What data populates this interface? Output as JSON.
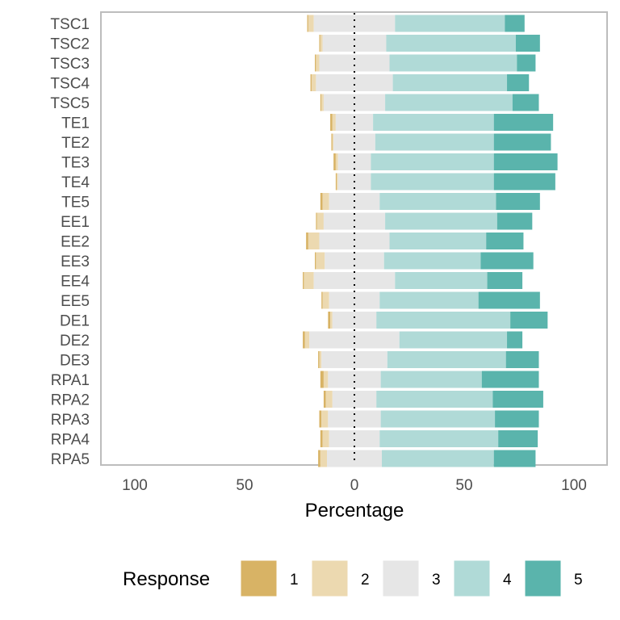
{
  "chart_data": {
    "type": "bar",
    "orientation": "horizontal",
    "stacked": "diverging",
    "categories": [
      "TSC1",
      "TSC2",
      "TSC3",
      "TSC4",
      "TSC5",
      "TE1",
      "TE2",
      "TE3",
      "TE4",
      "TE5",
      "EE1",
      "EE2",
      "EE3",
      "EE4",
      "EE5",
      "DE1",
      "DE2",
      "DE3",
      "RPA1",
      "RPA2",
      "RPA3",
      "RPA4",
      "RPA5"
    ],
    "series": [
      {
        "name": "1",
        "values": [
          0.5,
          0.5,
          0.5,
          0.5,
          0.5,
          1,
          0.5,
          1,
          0.5,
          1,
          0.5,
          1,
          0.5,
          0.5,
          0.5,
          1,
          1,
          0.5,
          1.5,
          1,
          1,
          1,
          1
        ]
      },
      {
        "name": "2",
        "values": [
          2.5,
          1,
          1.5,
          2,
          1,
          1.5,
          0.5,
          1,
          0.5,
          3,
          3,
          5,
          4,
          4.5,
          3,
          1,
          2,
          1,
          2,
          3,
          3,
          3,
          3
        ]
      },
      {
        "name": "3",
        "values": [
          37,
          29,
          32,
          35,
          28,
          17,
          19,
          15,
          15,
          23,
          28,
          32,
          27,
          37,
          23,
          20,
          41,
          30,
          24,
          20,
          24,
          23,
          25
        ]
      },
      {
        "name": "4",
        "values": [
          50,
          59,
          58,
          52,
          58,
          55,
          54,
          56,
          56,
          53,
          51,
          44,
          44,
          42,
          45,
          61,
          49,
          54,
          46,
          53,
          52,
          54,
          51
        ]
      },
      {
        "name": "5",
        "values": [
          9,
          11,
          8.5,
          10,
          12,
          27,
          26,
          29,
          28,
          20,
          16,
          17,
          24,
          16,
          28,
          17,
          7,
          15,
          26,
          23,
          20,
          18,
          19
        ]
      }
    ],
    "xlabel": "Percentage",
    "ylabel": "",
    "xlim": [
      -115,
      115
    ],
    "xticks": [
      -100,
      -50,
      0,
      50,
      100
    ],
    "xtick_labels": [
      "100",
      "50",
      "0",
      "50",
      "100"
    ],
    "colors": [
      "#d8b365",
      "#ecd9b0",
      "#e6e6e6",
      "#b0dad7",
      "#5ab4ac"
    ],
    "grid": false,
    "legend": {
      "title": "Response",
      "position": "bottom",
      "labels": [
        "1",
        "2",
        "3",
        "4",
        "5"
      ]
    }
  }
}
